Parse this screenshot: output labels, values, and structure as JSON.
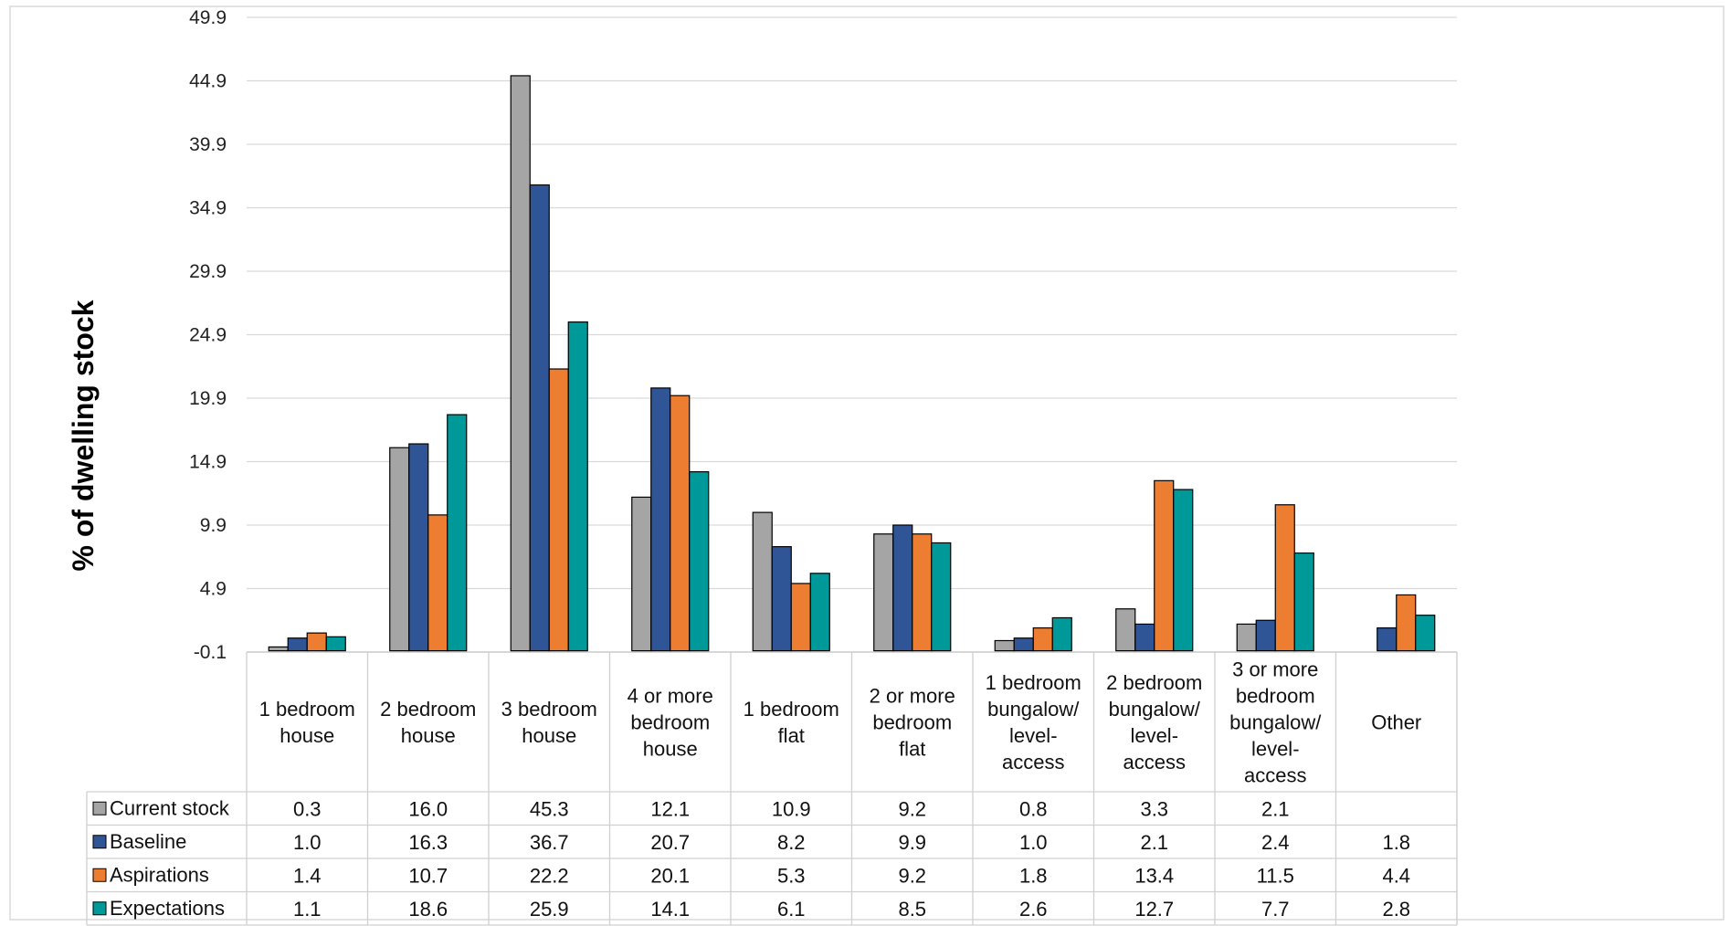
{
  "chart_data": {
    "type": "bar",
    "title": "",
    "xlabel": "",
    "ylabel": "% of dwelling stock",
    "ylim": [
      -0.1,
      49.9
    ],
    "yticks": [
      "-0.1",
      "4.9",
      "9.9",
      "14.9",
      "19.9",
      "24.9",
      "29.9",
      "34.9",
      "39.9",
      "44.9",
      "49.9"
    ],
    "grid": true,
    "legend": "data-table",
    "categories": [
      [
        "1 bedroom",
        "house"
      ],
      [
        "2 bedroom",
        "house"
      ],
      [
        "3 bedroom",
        "house"
      ],
      [
        "4 or more",
        "bedroom",
        "house"
      ],
      [
        "1 bedroom",
        "flat"
      ],
      [
        "2 or more",
        "bedroom",
        "flat"
      ],
      [
        "1 bedroom",
        "bungalow/",
        "level-",
        "access"
      ],
      [
        "2 bedroom",
        "bungalow/",
        "level-",
        "access"
      ],
      [
        "3 or more",
        "bedroom",
        "bungalow/",
        "level-",
        "access"
      ],
      [
        "Other"
      ]
    ],
    "series": [
      {
        "name": "Current stock",
        "color": "#a5a5a5",
        "values": [
          0.3,
          16.0,
          45.3,
          12.1,
          10.9,
          9.2,
          0.8,
          3.3,
          2.1,
          null
        ],
        "labels": [
          "0.3",
          "16.0",
          "45.3",
          "12.1",
          "10.9",
          "9.2",
          "0.8",
          "3.3",
          "2.1",
          ""
        ]
      },
      {
        "name": "Baseline",
        "color": "#2f5597",
        "values": [
          1.0,
          16.3,
          36.7,
          20.7,
          8.2,
          9.9,
          1.0,
          2.1,
          2.4,
          1.8
        ],
        "labels": [
          "1.0",
          "16.3",
          "36.7",
          "20.7",
          "8.2",
          "9.9",
          "1.0",
          "2.1",
          "2.4",
          "1.8"
        ]
      },
      {
        "name": "Aspirations",
        "color": "#ed7d31",
        "values": [
          1.4,
          10.7,
          22.2,
          20.1,
          5.3,
          9.2,
          1.8,
          13.4,
          11.5,
          4.4
        ],
        "labels": [
          "1.4",
          "10.7",
          "22.2",
          "20.1",
          "5.3",
          "9.2",
          "1.8",
          "13.4",
          "11.5",
          "4.4"
        ]
      },
      {
        "name": "Expectations",
        "color": "#009999",
        "values": [
          1.1,
          18.6,
          25.9,
          14.1,
          6.1,
          8.5,
          2.6,
          12.7,
          7.7,
          2.8
        ],
        "labels": [
          "1.1",
          "18.6",
          "25.9",
          "14.1",
          "6.1",
          "8.5",
          "2.6",
          "12.7",
          "7.7",
          "2.8"
        ]
      }
    ]
  }
}
